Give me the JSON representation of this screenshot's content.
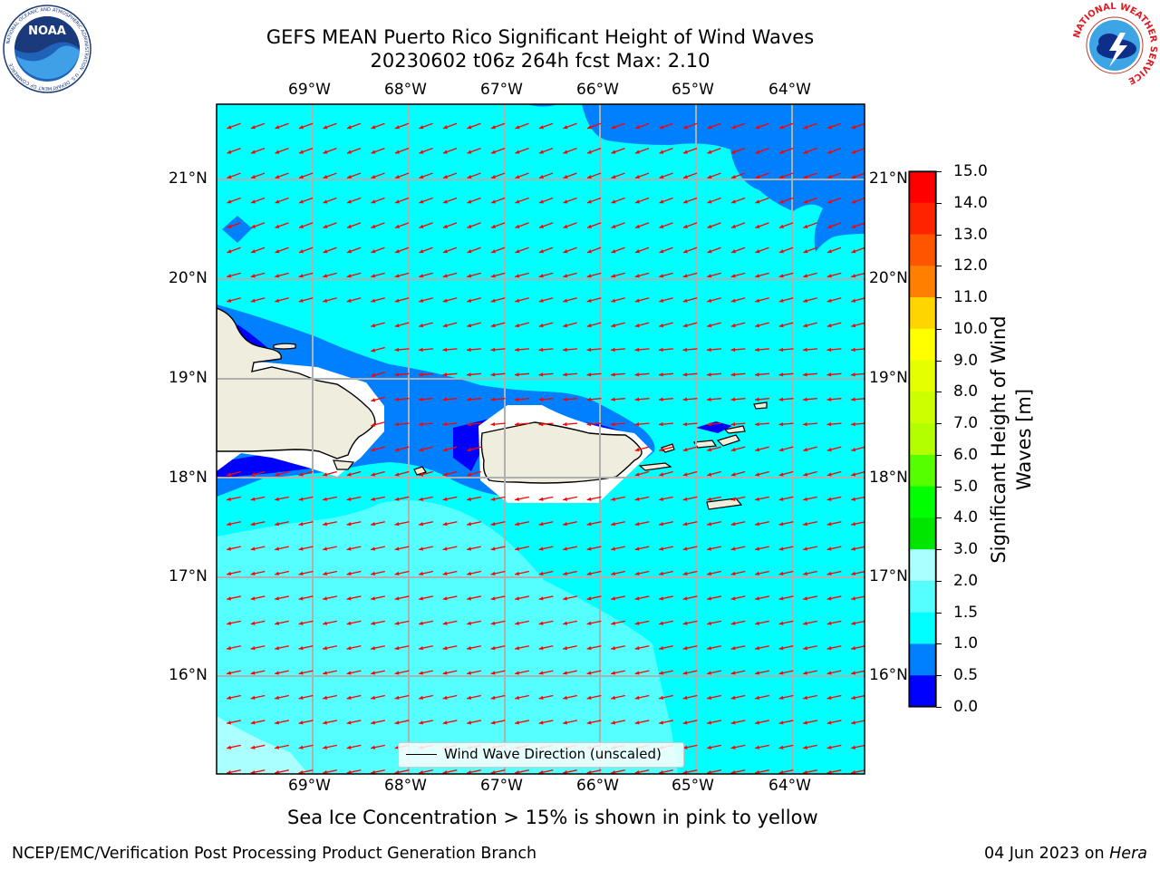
{
  "header": {
    "title_line1": "GEFS MEAN Puerto Rico Significant Height of Wind Waves",
    "title_line2": "20230602 t06z 264h fcst   Max: 2.10"
  },
  "map": {
    "lon_labels": [
      "69°W",
      "68°W",
      "67°W",
      "66°W",
      "65°W",
      "64°W"
    ],
    "lat_labels": [
      "21°N",
      "20°N",
      "19°N",
      "18°N",
      "17°N",
      "16°N"
    ],
    "legend_label": "Wind Wave Direction (unscaled)",
    "arrow_color": "#ff0000",
    "land_color": "#efedde",
    "ocean_colors": {
      "0.5-1.0": "#0080ff",
      "1.0-1.5": "#00ffff",
      "1.5-2.0": "#55ffff",
      "2.0-3.0": "#aaffff",
      "0.0-0.5": "#0000ff"
    }
  },
  "colorbar": {
    "title": "Significant Height of Wind Waves [m]",
    "tick_labels": [
      "15.0",
      "14.0",
      "13.0",
      "12.0",
      "11.0",
      "10.0",
      "9.0",
      "8.0",
      "7.0",
      "6.0",
      "5.0",
      "4.0",
      "3.0",
      "2.0",
      "1.5",
      "1.0",
      "0.5",
      "0.0"
    ],
    "colors_top_to_bottom": [
      "#ff0000",
      "#ff2400",
      "#ff5500",
      "#ff8000",
      "#ffaa00",
      "#ffd500",
      "#ffff00",
      "#e6ff00",
      "#ccff00",
      "#b3ff00",
      "#55ff00",
      "#00ff00",
      "#00e600",
      "#55ff80",
      "#aaffff",
      "#55ffff",
      "#00ffff",
      "#0080ff",
      "#0000ff"
    ]
  },
  "notes": {
    "ice_note": "Sea Ice Concentration > 15% is shown in pink to yellow",
    "footer_left": "NCEP/EMC/Verification Post Processing Product Generation Branch",
    "footer_right_date": "04 Jun 2023 on ",
    "footer_right_machine": "Hera"
  },
  "logos": {
    "left": "NOAA",
    "left_ring_text": "NATIONAL OCEANIC AND ATMOSPHERIC ADMINISTRATION · U.S. DEPARTMENT OF COMMERCE",
    "right_ring_text": "NATIONAL WEATHER SERVICE"
  }
}
